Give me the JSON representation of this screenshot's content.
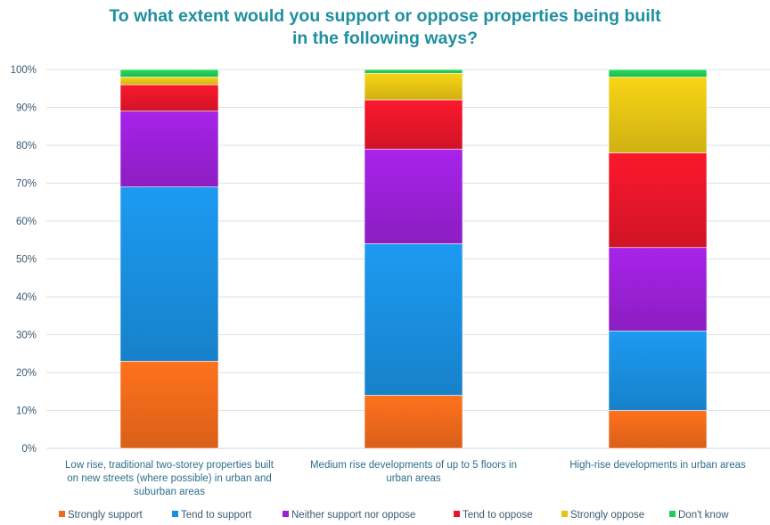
{
  "chart_data": {
    "type": "bar",
    "stacked": true,
    "title": "To what extent would you support or oppose properties being built in the following ways?",
    "title_lines": [
      "To what extent would you support or oppose properties being built",
      "in the following ways?"
    ],
    "categories": [
      "Low rise, traditional two-storey properties built on new streets (where possible) in urban and suburban areas",
      "Medium rise developments of up to 5 floors in urban areas",
      "High-rise developments in urban areas"
    ],
    "category_label_lines": [
      [
        "Low rise, traditional two-storey properties built",
        "on new streets (where possible) in urban and",
        "suburban areas"
      ],
      [
        "Medium rise developments of up to 5 floors in",
        "urban areas"
      ],
      [
        "High-rise developments in urban areas"
      ]
    ],
    "series": [
      {
        "name": "Strongly support",
        "color": "#f26a1b",
        "values": [
          23,
          14,
          10
        ]
      },
      {
        "name": "Tend to support",
        "color": "#1a8fe0",
        "values": [
          46,
          40,
          21
        ]
      },
      {
        "name": "Neither support nor oppose",
        "color": "#9b20d8",
        "values": [
          20,
          25,
          22
        ]
      },
      {
        "name": "Tend to oppose",
        "color": "#e8162a",
        "values": [
          7,
          13,
          25
        ]
      },
      {
        "name": "Strongly oppose",
        "color": "#e6c514",
        "values": [
          2,
          7,
          20
        ]
      },
      {
        "name": "Don't know",
        "color": "#22cc55",
        "values": [
          2,
          1,
          2
        ]
      }
    ],
    "ylim": [
      0,
      100
    ],
    "yticks": [
      "0%",
      "10%",
      "20%",
      "30%",
      "40%",
      "50%",
      "60%",
      "70%",
      "80%",
      "90%",
      "100%"
    ],
    "xlabel": "",
    "ylabel": "",
    "grid": true,
    "legend_position": "bottom"
  }
}
